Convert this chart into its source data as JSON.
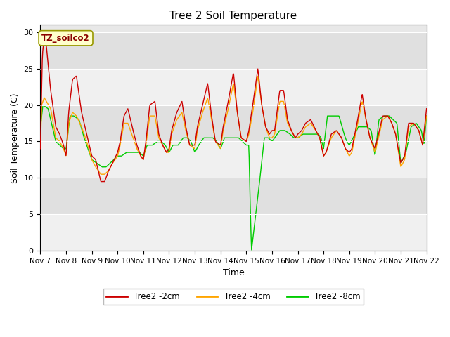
{
  "title": "Tree 2 Soil Temperature",
  "xlabel": "Time",
  "ylabel": "Soil Temperature (C)",
  "ylim": [
    0,
    31
  ],
  "yticks": [
    0,
    5,
    10,
    15,
    20,
    25,
    30
  ],
  "annotation_text": "TZ_soilco2",
  "legend_labels": [
    "Tree2 -2cm",
    "Tree2 -4cm",
    "Tree2 -8cm"
  ],
  "legend_colors": [
    "#cc0000",
    "#ffa500",
    "#00cc00"
  ],
  "fig_facecolor": "#ffffff",
  "ax_facecolor": "#e8e8e8",
  "grid_color": "#ffffff",
  "title_fontsize": 11,
  "tick_fontsize": 8,
  "label_fontsize": 9,
  "kp_t_red": [
    7.0,
    7.08,
    7.18,
    7.4,
    7.6,
    7.75,
    7.9,
    8.0,
    8.1,
    8.25,
    8.4,
    8.6,
    8.8,
    9.0,
    9.15,
    9.35,
    9.5,
    9.65,
    9.8,
    10.0,
    10.1,
    10.25,
    10.4,
    10.6,
    10.75,
    10.9,
    11.0,
    11.1,
    11.25,
    11.45,
    11.6,
    11.75,
    11.9,
    12.0,
    12.1,
    12.3,
    12.5,
    12.65,
    12.8,
    13.0,
    13.1,
    13.3,
    13.5,
    13.65,
    13.8,
    14.0,
    14.1,
    14.3,
    14.5,
    14.65,
    14.8,
    15.0,
    15.1,
    15.25,
    15.45,
    15.6,
    15.75,
    15.9,
    16.0,
    16.1,
    16.3,
    16.45,
    16.6,
    16.75,
    16.9,
    17.0,
    17.15,
    17.3,
    17.5,
    17.7,
    17.85,
    18.0,
    18.1,
    18.3,
    18.5,
    18.7,
    18.85,
    19.0,
    19.1,
    19.3,
    19.5,
    19.65,
    19.8,
    20.0,
    20.1,
    20.3,
    20.5,
    20.65,
    20.8,
    21.0,
    21.15,
    21.3,
    21.5,
    21.7,
    21.85,
    22.0
  ],
  "kp_v_red": [
    14.0,
    27.0,
    30.0,
    22.0,
    17.0,
    16.0,
    14.5,
    13.0,
    19.0,
    23.5,
    24.0,
    19.0,
    16.0,
    13.0,
    12.5,
    9.5,
    9.5,
    11.0,
    12.0,
    13.5,
    15.0,
    18.5,
    19.5,
    16.5,
    14.5,
    13.0,
    12.5,
    15.0,
    20.0,
    20.5,
    16.0,
    14.5,
    13.5,
    14.0,
    16.5,
    19.0,
    20.5,
    17.0,
    14.5,
    14.5,
    17.0,
    20.0,
    23.0,
    18.5,
    15.0,
    14.5,
    17.0,
    20.5,
    24.5,
    19.0,
    15.5,
    15.0,
    16.5,
    20.0,
    25.0,
    20.0,
    17.0,
    16.0,
    16.5,
    16.5,
    22.0,
    22.0,
    18.0,
    16.5,
    15.5,
    16.0,
    16.5,
    17.5,
    18.0,
    16.5,
    15.5,
    13.0,
    13.5,
    16.0,
    16.5,
    15.5,
    14.0,
    13.5,
    14.0,
    17.5,
    21.5,
    18.0,
    15.5,
    14.0,
    15.5,
    18.5,
    18.5,
    17.5,
    16.0,
    12.0,
    13.0,
    17.5,
    17.5,
    16.5,
    14.5,
    19.5
  ],
  "kp_t_orange": [
    7.0,
    7.05,
    7.15,
    7.4,
    7.6,
    7.75,
    7.9,
    8.0,
    8.1,
    8.25,
    8.4,
    8.6,
    8.8,
    9.0,
    9.15,
    9.35,
    9.5,
    9.65,
    9.8,
    10.0,
    10.1,
    10.25,
    10.4,
    10.6,
    10.75,
    10.9,
    11.0,
    11.1,
    11.25,
    11.45,
    11.6,
    11.75,
    11.9,
    12.0,
    12.1,
    12.3,
    12.5,
    12.65,
    12.8,
    13.0,
    13.1,
    13.3,
    13.5,
    13.65,
    13.8,
    14.0,
    14.1,
    14.3,
    14.5,
    14.65,
    14.8,
    15.0,
    15.1,
    15.25,
    15.45,
    15.6,
    15.75,
    15.9,
    16.0,
    16.1,
    16.3,
    16.45,
    16.6,
    16.75,
    16.9,
    17.0,
    17.15,
    17.3,
    17.5,
    17.7,
    17.85,
    18.0,
    18.1,
    18.3,
    18.5,
    18.7,
    18.85,
    19.0,
    19.1,
    19.3,
    19.5,
    19.65,
    19.8,
    20.0,
    20.1,
    20.3,
    20.5,
    20.65,
    20.8,
    21.0,
    21.15,
    21.3,
    21.5,
    21.7,
    21.85,
    22.0
  ],
  "kp_v_orange": [
    13.5,
    20.0,
    21.0,
    19.5,
    15.5,
    15.0,
    14.0,
    13.0,
    17.5,
    19.0,
    18.5,
    17.0,
    15.0,
    12.5,
    11.5,
    10.5,
    10.5,
    11.0,
    12.0,
    13.0,
    14.5,
    17.5,
    17.5,
    15.5,
    14.0,
    13.0,
    12.5,
    14.5,
    18.5,
    18.5,
    15.5,
    14.5,
    13.5,
    13.5,
    16.0,
    18.0,
    19.0,
    16.5,
    14.5,
    14.0,
    16.5,
    19.0,
    21.0,
    18.0,
    15.0,
    14.0,
    16.5,
    19.5,
    23.0,
    19.0,
    15.5,
    15.0,
    16.0,
    19.0,
    24.0,
    20.0,
    17.0,
    15.5,
    15.5,
    16.0,
    20.5,
    20.5,
    17.5,
    16.5,
    15.5,
    15.5,
    16.0,
    17.0,
    17.5,
    16.5,
    15.5,
    13.0,
    13.5,
    15.5,
    16.5,
    15.5,
    14.0,
    13.0,
    13.5,
    17.0,
    20.5,
    18.0,
    15.5,
    13.5,
    15.0,
    18.0,
    18.5,
    17.5,
    16.0,
    11.5,
    12.5,
    17.0,
    17.5,
    16.5,
    14.5,
    18.5
  ],
  "kp_t_green": [
    7.0,
    7.02,
    7.1,
    7.3,
    7.6,
    7.75,
    7.9,
    8.0,
    8.15,
    8.3,
    8.5,
    8.7,
    8.9,
    9.0,
    9.2,
    9.4,
    9.55,
    9.7,
    9.85,
    10.0,
    10.15,
    10.35,
    10.55,
    10.7,
    10.85,
    11.0,
    11.15,
    11.35,
    11.55,
    11.7,
    11.85,
    12.0,
    12.15,
    12.35,
    12.55,
    12.7,
    12.85,
    13.0,
    13.15,
    13.35,
    13.55,
    13.7,
    13.85,
    14.0,
    14.15,
    14.35,
    14.55,
    14.7,
    14.85,
    15.0,
    15.1,
    15.14,
    15.2,
    15.5,
    15.7,
    15.85,
    16.0,
    16.1,
    16.3,
    16.5,
    16.7,
    16.85,
    17.0,
    17.2,
    17.4,
    17.6,
    17.8,
    17.9,
    18.0,
    18.15,
    18.4,
    18.6,
    18.8,
    18.9,
    19.0,
    19.15,
    19.35,
    19.55,
    19.7,
    19.85,
    20.0,
    20.15,
    20.35,
    20.55,
    20.7,
    20.85,
    21.0,
    21.2,
    21.4,
    21.6,
    21.8,
    21.9,
    22.0
  ],
  "kp_v_green": [
    16.5,
    17.5,
    20.0,
    19.5,
    15.0,
    14.5,
    14.0,
    14.0,
    18.5,
    18.5,
    18.0,
    15.5,
    13.5,
    12.5,
    12.0,
    11.5,
    11.5,
    12.0,
    12.5,
    13.0,
    13.0,
    13.5,
    13.5,
    13.5,
    13.5,
    13.0,
    14.5,
    14.5,
    15.0,
    15.0,
    14.5,
    13.5,
    14.5,
    14.5,
    15.5,
    15.5,
    15.0,
    13.5,
    14.5,
    15.5,
    15.5,
    15.5,
    15.0,
    14.0,
    15.5,
    15.5,
    15.5,
    15.5,
    15.0,
    14.5,
    14.5,
    8.0,
    0.0,
    9.0,
    15.5,
    15.5,
    15.0,
    15.5,
    16.5,
    16.5,
    16.0,
    15.5,
    15.5,
    16.0,
    16.0,
    16.0,
    16.0,
    15.5,
    14.0,
    18.5,
    18.5,
    18.5,
    16.0,
    15.0,
    14.5,
    15.5,
    17.0,
    17.0,
    17.0,
    16.5,
    13.0,
    18.0,
    18.5,
    18.5,
    18.0,
    17.5,
    12.0,
    13.5,
    17.0,
    17.5,
    16.5,
    14.5,
    18.5
  ]
}
